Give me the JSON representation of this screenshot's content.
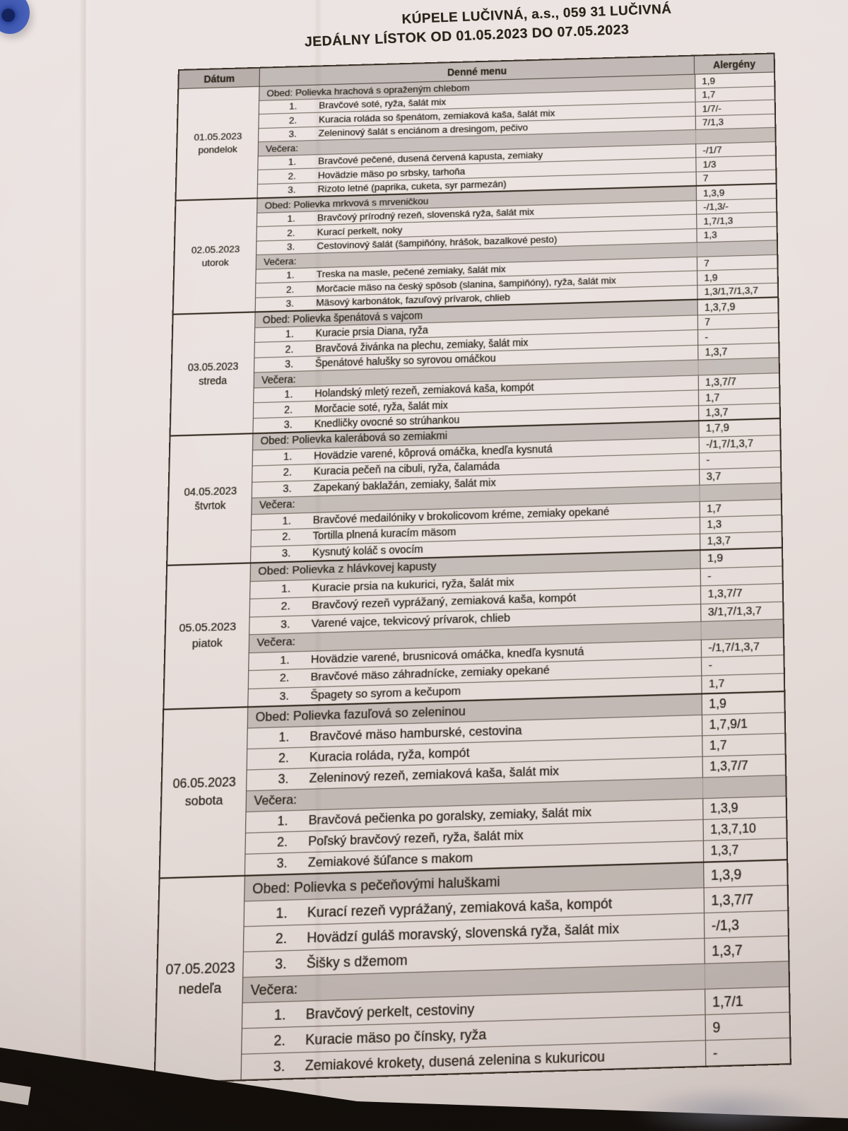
{
  "titles": {
    "line1": "KÚPELE LUČIVNÁ, a.s., 059 31 LUČIVNÁ",
    "line2": "JEDÁLNY LÍSTOK OD 01.05.2023 DO 07.05.2023"
  },
  "table": {
    "headers": {
      "date": "Dátum",
      "menu": "Denné menu",
      "allergens": "Alergény"
    },
    "days": [
      {
        "date": "01.05.2023",
        "weekday": "pondelok",
        "rows": [
          {
            "type": "obed",
            "label": "Obed: Polievka hrachová s opraženým chlebom",
            "allergens": "1,9"
          },
          {
            "type": "item",
            "num": "1.",
            "text": "Bravčové soté, ryža, šalát mix",
            "allergens": "1,7"
          },
          {
            "type": "item",
            "num": "2.",
            "text": "Kuracia roláda so špenátom, zemiaková kaša, šalát mix",
            "allergens": "1/7/-"
          },
          {
            "type": "item",
            "num": "3.",
            "text": "Zeleninový šalát s enciánom a dresingom, pečivo",
            "allergens": "7/1,3"
          },
          {
            "type": "vecera",
            "label": "Večera:",
            "allergens": ""
          },
          {
            "type": "item",
            "num": "1.",
            "text": "Bravčové pečené, dusená červená kapusta, zemiaky",
            "allergens": "-/1/7"
          },
          {
            "type": "item",
            "num": "2.",
            "text": "Hovädzie mäso po srbsky, tarhoňa",
            "allergens": "1/3"
          },
          {
            "type": "item",
            "num": "3.",
            "text": "Rizoto letné (paprika, cuketa, syr parmezán)",
            "allergens": "7"
          }
        ]
      },
      {
        "date": "02.05.2023",
        "weekday": "utorok",
        "rows": [
          {
            "type": "obed",
            "label": "Obed: Polievka mrkvová s mrveničkou",
            "allergens": "1,3,9"
          },
          {
            "type": "item",
            "num": "1.",
            "text": "Bravčový prírodný rezeň, slovenská ryža, šalát mix",
            "allergens": "-/1,3/-"
          },
          {
            "type": "item",
            "num": "2.",
            "text": "Kurací perkelt, noky",
            "allergens": "1,7/1,3"
          },
          {
            "type": "item",
            "num": "3.",
            "text": "Cestovinový šalát (šampiňóny, hrášok, bazalkové pesto)",
            "allergens": "1,3"
          },
          {
            "type": "vecera",
            "label": "Večera:",
            "allergens": ""
          },
          {
            "type": "item",
            "num": "1.",
            "text": "Treska na masle, pečené zemiaky, šalát mix",
            "allergens": "7"
          },
          {
            "type": "item",
            "num": "2.",
            "text": "Morčacie mäso na český spôsob (slanina, šampiňóny), ryža, šalát mix",
            "allergens": "1,9"
          },
          {
            "type": "item",
            "num": "3.",
            "text": "Mäsový karbonátok, fazuľový prívarok, chlieb",
            "allergens": "1,3/1,7/1,3,7"
          }
        ]
      },
      {
        "date": "03.05.2023",
        "weekday": "streda",
        "rows": [
          {
            "type": "obed",
            "label": "Obed: Polievka špenátová s vajcom",
            "allergens": "1,3,7,9"
          },
          {
            "type": "item",
            "num": "1.",
            "text": "Kuracie prsia Diana, ryža",
            "allergens": "7"
          },
          {
            "type": "item",
            "num": "2.",
            "text": "Bravčová živánka na plechu, zemiaky, šalát mix",
            "allergens": "-"
          },
          {
            "type": "item",
            "num": "3.",
            "text": "Špenátové halušky so syrovou omáčkou",
            "allergens": "1,3,7"
          },
          {
            "type": "vecera",
            "label": "Večera:",
            "allergens": ""
          },
          {
            "type": "item",
            "num": "1.",
            "text": "Holandský mletý rezeň, zemiaková kaša, kompót",
            "allergens": "1,3,7/7"
          },
          {
            "type": "item",
            "num": "2.",
            "text": "Morčacie soté, ryža, šalát mix",
            "allergens": "1,7"
          },
          {
            "type": "item",
            "num": "3.",
            "text": "Knedličky ovocné so strúhankou",
            "allergens": "1,3,7"
          }
        ]
      },
      {
        "date": "04.05.2023",
        "weekday": "štvrtok",
        "rows": [
          {
            "type": "obed",
            "label": "Obed: Polievka kalerábová so zemiakmi",
            "allergens": "1,7,9"
          },
          {
            "type": "item",
            "num": "1.",
            "text": "Hovädzie varené, kôprová omáčka, knedľa kysnutá",
            "allergens": "-/1,7/1,3,7"
          },
          {
            "type": "item",
            "num": "2.",
            "text": "Kuracia pečeň na cibuli, ryža, čalamáda",
            "allergens": "-"
          },
          {
            "type": "item",
            "num": "3.",
            "text": "Zapekaný baklažán, zemiaky, šalát mix",
            "allergens": "3,7"
          },
          {
            "type": "vecera",
            "label": "Večera:",
            "allergens": ""
          },
          {
            "type": "item",
            "num": "1.",
            "text": "Bravčové medailóniky v brokolicovom kréme, zemiaky opekané",
            "allergens": "1,7"
          },
          {
            "type": "item",
            "num": "2.",
            "text": "Tortilla plnená kuracím mäsom",
            "allergens": "1,3"
          },
          {
            "type": "item",
            "num": "3.",
            "text": "Kysnutý koláč s ovocím",
            "allergens": "1,3,7"
          }
        ]
      },
      {
        "date": "05.05.2023",
        "weekday": "piatok",
        "rows": [
          {
            "type": "obed",
            "label": "Obed: Polievka z hlávkovej kapusty",
            "allergens": "1,9"
          },
          {
            "type": "item",
            "num": "1.",
            "text": "Kuracie prsia na kukurici, ryža, šalát mix",
            "allergens": "-"
          },
          {
            "type": "item",
            "num": "2.",
            "text": "Bravčový rezeň vyprážaný, zemiaková kaša, kompót",
            "allergens": "1,3,7/7"
          },
          {
            "type": "item",
            "num": "3.",
            "text": "Varené vajce, tekvicový prívarok, chlieb",
            "allergens": "3/1,7/1,3,7"
          },
          {
            "type": "vecera",
            "label": "Večera:",
            "allergens": ""
          },
          {
            "type": "item",
            "num": "1.",
            "text": "Hovädzie varené, brusnicová omáčka, knedľa kysnutá",
            "allergens": "-/1,7/1,3,7"
          },
          {
            "type": "item",
            "num": "2.",
            "text": "Bravčové mäso záhradnícke, zemiaky opekané",
            "allergens": "-"
          },
          {
            "type": "item",
            "num": "3.",
            "text": "Špagety so syrom a kečupom",
            "allergens": "1,7"
          }
        ]
      },
      {
        "date": "06.05.2023",
        "weekday": "sobota",
        "rows": [
          {
            "type": "obed",
            "label": "Obed: Polievka fazuľová so zeleninou",
            "allergens": "1,9"
          },
          {
            "type": "item",
            "num": "1.",
            "text": "Bravčové mäso hamburské, cestovina",
            "allergens": "1,7,9/1"
          },
          {
            "type": "item",
            "num": "2.",
            "text": "Kuracia roláda, ryža, kompót",
            "allergens": "1,7"
          },
          {
            "type": "item",
            "num": "3.",
            "text": "Zeleninový rezeň, zemiaková kaša, šalát mix",
            "allergens": "1,3,7/7"
          },
          {
            "type": "vecera",
            "label": "Večera:",
            "allergens": ""
          },
          {
            "type": "item",
            "num": "1.",
            "text": "Bravčová pečienka po goralsky, zemiaky, šalát mix",
            "allergens": "1,3,9"
          },
          {
            "type": "item",
            "num": "2.",
            "text": "Poľský bravčový rezeň, ryža, šalát mix",
            "allergens": "1,3,7,10"
          },
          {
            "type": "item",
            "num": "3.",
            "text": "Zemiakové šúľance s makom",
            "allergens": "1,3,7"
          }
        ]
      },
      {
        "date": "07.05.2023",
        "weekday": "nedeľa",
        "rows": [
          {
            "type": "obed",
            "label": "Obed: Polievka s pečeňovými haluškami",
            "allergens": "1,3,9"
          },
          {
            "type": "item",
            "num": "1.",
            "text": "Kurací rezeň vyprážaný, zemiaková kaša, kompót",
            "allergens": "1,3,7/7"
          },
          {
            "type": "item",
            "num": "2.",
            "text": "Hovädzí guláš moravský, slovenská ryža, šalát mix",
            "allergens": "-/1,3"
          },
          {
            "type": "item",
            "num": "3.",
            "text": "Šišky s džemom",
            "allergens": "1,3,7"
          },
          {
            "type": "vecera",
            "label": "Večera:",
            "allergens": ""
          },
          {
            "type": "item",
            "num": "1.",
            "text": "Bravčový perkelt, cestoviny",
            "allergens": "1,7/1"
          },
          {
            "type": "item",
            "num": "2.",
            "text": "Kuracie mäso po čínsky, ryža",
            "allergens": "9"
          },
          {
            "type": "item",
            "num": "3.",
            "text": "Zemiakové krokety, dusená zelenina s kukuricou",
            "allergens": "-"
          }
        ]
      }
    ]
  },
  "colors": {
    "paper": "#e9e1de",
    "ink": "#2a2319",
    "shaded_band": "#c6c1be",
    "header_band": "#aba5a1",
    "table_border": "#362c22",
    "background": "#16110d",
    "pin_blue": "#3f58b0"
  }
}
